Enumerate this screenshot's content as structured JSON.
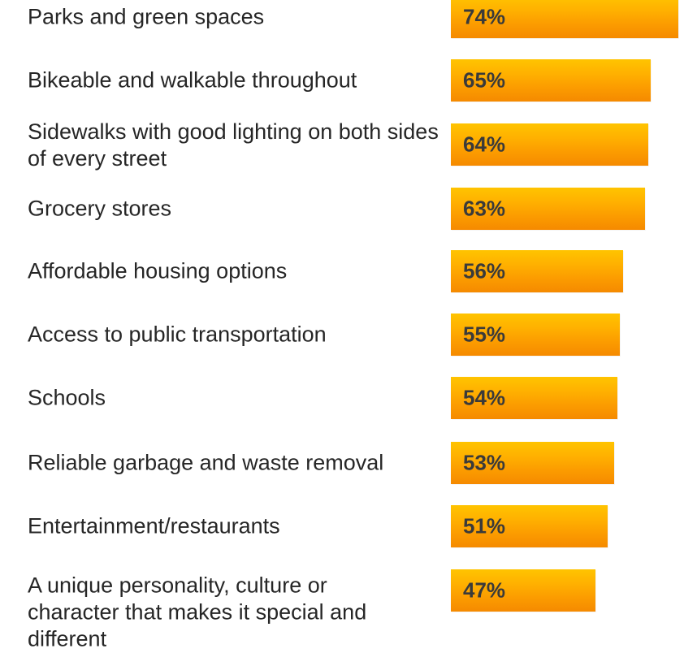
{
  "chart_data": {
    "type": "bar",
    "orientation": "horizontal",
    "categories": [
      "Parks and green spaces",
      "Bikeable and walkable throughout",
      "Sidewalks with good lighting on both sides of every street",
      "Grocery stores",
      "Affordable housing options",
      "Access to public transportation",
      "Schools",
      "Reliable garbage and waste removal",
      "Entertainment/restaurants",
      "A unique personality, culture or character that makes it special and different"
    ],
    "values": [
      74,
      65,
      64,
      63,
      56,
      55,
      54,
      53,
      51,
      47
    ],
    "value_labels": [
      "74%",
      "65%",
      "64%",
      "63%",
      "56%",
      "55%",
      "54%",
      "53%",
      "51%",
      "47%"
    ],
    "xlim": [
      0,
      100
    ],
    "grid": false,
    "colors": {
      "bar_top": "#ffc400",
      "bar_bottom": "#f58a00",
      "text": "#262626"
    }
  }
}
